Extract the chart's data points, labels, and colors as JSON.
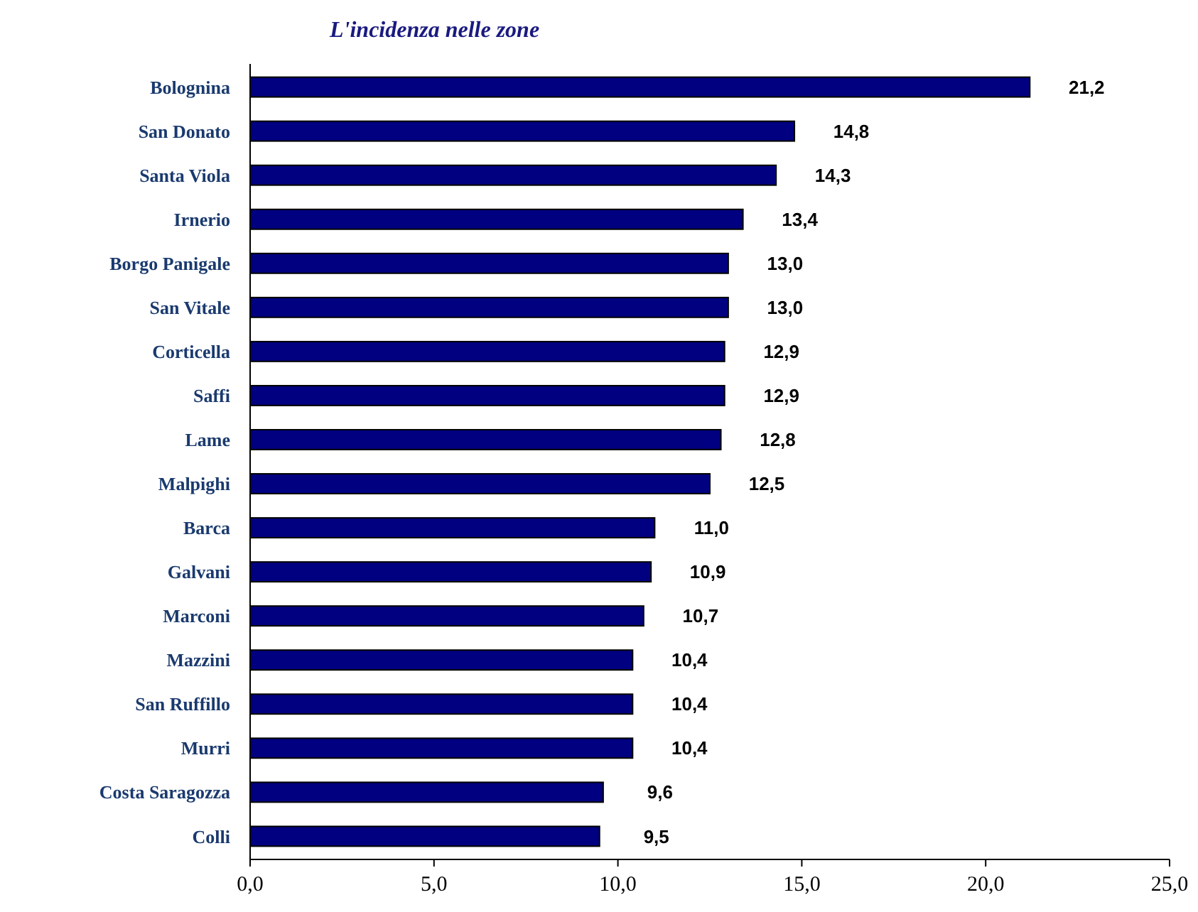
{
  "chart_data": {
    "type": "bar",
    "orientation": "horizontal",
    "title": "L'incidenza nelle zone",
    "categories": [
      "Bolognina",
      "San Donato",
      "Santa Viola",
      "Irnerio",
      "Borgo Panigale",
      "San Vitale",
      "Corticella",
      "Saffi",
      "Lame",
      "Malpighi",
      "Barca",
      "Galvani",
      "Marconi",
      "Mazzini",
      "San Ruffillo",
      "Murri",
      "Costa Saragozza",
      "Colli"
    ],
    "values": [
      21.2,
      14.8,
      14.3,
      13.4,
      13.0,
      13.0,
      12.9,
      12.9,
      12.8,
      12.5,
      11.0,
      10.9,
      10.7,
      10.4,
      10.4,
      10.4,
      9.6,
      9.5
    ],
    "value_labels": [
      "21,2",
      "14,8",
      "14,3",
      "13,4",
      "13,0",
      "13,0",
      "12,9",
      "12,9",
      "12,8",
      "12,5",
      "11,0",
      "10,9",
      "10,7",
      "10,4",
      "10,4",
      "10,4",
      "9,6",
      "9,5"
    ],
    "color": "#000080",
    "xlim": [
      0,
      25
    ],
    "xticks": [
      {
        "value": 0,
        "label": "0,0"
      },
      {
        "value": 5,
        "label": "5,0"
      },
      {
        "value": 10,
        "label": "10,0"
      },
      {
        "value": 15,
        "label": "15,0"
      },
      {
        "value": 20,
        "label": "20,0"
      },
      {
        "value": 25,
        "label": "25,0"
      }
    ],
    "grid": false
  }
}
